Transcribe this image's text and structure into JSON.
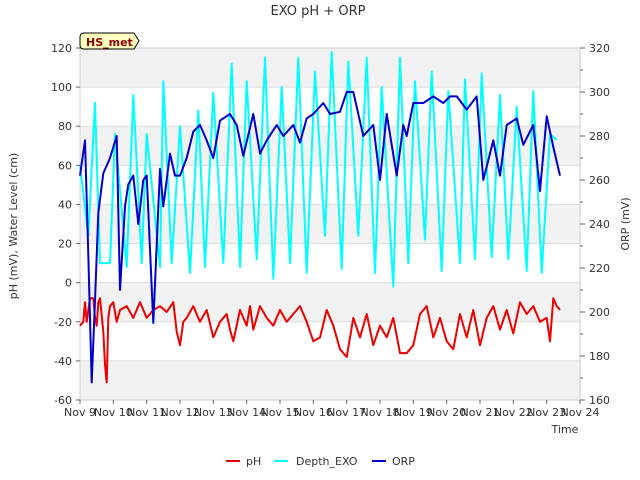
{
  "chart_data": {
    "type": "line",
    "title": "EXO pH + ORP",
    "station_label": "HS_met",
    "xlabel": "Time",
    "ylabel_left": "pH (mV), Water Level (cm)",
    "ylabel_right": "ORP (mV)",
    "x_ticks": [
      "Nov 9",
      "Nov 10",
      "Nov 11",
      "Nov 12",
      "Nov 13",
      "Nov 14",
      "Nov 15",
      "Nov 16",
      "Nov 17",
      "Nov 18",
      "Nov 19",
      "Nov 20",
      "Nov 21",
      "Nov 22",
      "Nov 23",
      "Nov 24"
    ],
    "y_left_ticks": [
      -60,
      -40,
      -20,
      0,
      20,
      40,
      60,
      80,
      100,
      120
    ],
    "y_right_ticks": [
      160,
      180,
      200,
      220,
      240,
      260,
      280,
      300,
      320
    ],
    "ylim_left": [
      -60,
      120
    ],
    "ylim_right": [
      160,
      320
    ],
    "xlim_days": [
      9,
      24
    ],
    "grid": "horizontal alternating bands",
    "legend_position": "bottom-center",
    "series": [
      {
        "name": "pH",
        "axis": "left",
        "color": "#ee0000",
        "x": [
          9.0,
          9.1,
          9.15,
          9.2,
          9.3,
          9.4,
          9.45,
          9.5,
          9.55,
          9.6,
          9.7,
          9.75,
          9.8,
          9.85,
          9.9,
          10.0,
          10.1,
          10.2,
          10.4,
          10.6,
          10.8,
          11.0,
          11.2,
          11.4,
          11.6,
          11.8,
          11.9,
          12.0,
          12.1,
          12.2,
          12.4,
          12.6,
          12.8,
          13.0,
          13.2,
          13.4,
          13.5,
          13.6,
          13.8,
          14.0,
          14.1,
          14.2,
          14.4,
          14.6,
          14.8,
          15.0,
          15.2,
          15.4,
          15.6,
          15.8,
          16.0,
          16.2,
          16.4,
          16.6,
          16.8,
          17.0,
          17.2,
          17.4,
          17.6,
          17.8,
          18.0,
          18.2,
          18.4,
          18.6,
          18.8,
          19.0,
          19.2,
          19.4,
          19.6,
          19.8,
          20.0,
          20.2,
          20.4,
          20.6,
          20.8,
          21.0,
          21.2,
          21.4,
          21.6,
          21.8,
          22.0,
          22.2,
          22.4,
          22.6,
          22.8,
          23.0,
          23.1,
          23.2,
          23.3,
          23.4
        ],
        "y": [
          -22,
          -20,
          -10,
          -20,
          -8,
          -8,
          -18,
          -22,
          -10,
          -8,
          -25,
          -42,
          -51,
          -18,
          -12,
          -10,
          -20,
          -14,
          -12,
          -18,
          -10,
          -18,
          -14,
          -12,
          -15,
          -10,
          -25,
          -32,
          -20,
          -18,
          -12,
          -20,
          -14,
          -28,
          -20,
          -16,
          -24,
          -30,
          -14,
          -22,
          -12,
          -24,
          -12,
          -18,
          -22,
          -14,
          -20,
          -16,
          -12,
          -20,
          -30,
          -28,
          -14,
          -22,
          -34,
          -38,
          -18,
          -28,
          -16,
          -32,
          -22,
          -28,
          -18,
          -36,
          -36,
          -32,
          -16,
          -12,
          -28,
          -18,
          -30,
          -34,
          -16,
          -28,
          -14,
          -32,
          -18,
          -12,
          -24,
          -14,
          -26,
          -10,
          -16,
          -12,
          -20,
          -18,
          -30,
          -8,
          -12,
          -14
        ]
      },
      {
        "name": "Depth_EXO",
        "axis": "left",
        "color": "#00ffff",
        "x": [
          9.0,
          9.25,
          9.45,
          9.6,
          9.9,
          10.05,
          10.4,
          10.6,
          10.85,
          11.0,
          11.4,
          11.5,
          11.75,
          12.0,
          12.3,
          12.55,
          12.75,
          13.0,
          13.3,
          13.55,
          13.8,
          14.0,
          14.3,
          14.55,
          14.8,
          15.05,
          15.3,
          15.55,
          15.8,
          16.05,
          16.35,
          16.55,
          16.85,
          17.05,
          17.35,
          17.6,
          17.85,
          18.05,
          18.4,
          18.6,
          18.85,
          19.05,
          19.35,
          19.55,
          19.85,
          20.05,
          20.4,
          20.55,
          20.85,
          21.05,
          21.35,
          21.6,
          21.85,
          22.1,
          22.4,
          22.6,
          22.85,
          23.1,
          23.3
        ],
        "y": [
          60,
          24,
          92,
          10,
          10,
          76,
          8,
          96,
          10,
          76,
          8,
          103,
          10,
          80,
          5,
          88,
          8,
          97,
          10,
          112,
          8,
          103,
          12,
          115,
          2,
          100,
          10,
          115,
          5,
          108,
          24,
          118,
          7,
          113,
          24,
          115,
          5,
          100,
          -2,
          115,
          10,
          103,
          22,
          108,
          6,
          98,
          10,
          104,
          12,
          107,
          13,
          96,
          12,
          90,
          6,
          98,
          5,
          76,
          73
        ]
      },
      {
        "name": "ORP",
        "axis": "right",
        "color": "#0000cc",
        "x": [
          9.0,
          9.15,
          9.25,
          9.35,
          9.45,
          9.55,
          9.7,
          9.9,
          10.1,
          10.2,
          10.35,
          10.45,
          10.6,
          10.75,
          10.9,
          11.0,
          11.2,
          11.4,
          11.5,
          11.7,
          11.85,
          12.0,
          12.2,
          12.4,
          12.6,
          12.8,
          13.0,
          13.2,
          13.5,
          13.7,
          13.9,
          14.2,
          14.4,
          14.6,
          14.9,
          15.1,
          15.4,
          15.6,
          15.8,
          16.0,
          16.3,
          16.5,
          16.8,
          17.0,
          17.2,
          17.5,
          17.8,
          18.0,
          18.2,
          18.5,
          18.7,
          18.8,
          19.0,
          19.3,
          19.6,
          19.9,
          20.1,
          20.3,
          20.6,
          20.9,
          21.1,
          21.4,
          21.6,
          21.8,
          22.1,
          22.3,
          22.6,
          22.8,
          23.0,
          23.2,
          23.4
        ],
        "y": [
          262,
          278,
          226,
          168,
          205,
          245,
          263,
          270,
          280,
          210,
          248,
          258,
          262,
          240,
          260,
          262,
          195,
          265,
          248,
          272,
          262,
          262,
          270,
          282,
          285,
          278,
          270,
          287,
          290,
          285,
          271,
          290,
          272,
          278,
          285,
          280,
          285,
          277,
          288,
          290,
          295,
          290,
          291,
          300,
          300,
          280,
          285,
          260,
          290,
          262,
          285,
          280,
          295,
          295,
          298,
          295,
          298,
          298,
          292,
          298,
          260,
          278,
          262,
          285,
          288,
          276,
          285,
          255,
          289,
          275,
          262
        ]
      }
    ]
  }
}
